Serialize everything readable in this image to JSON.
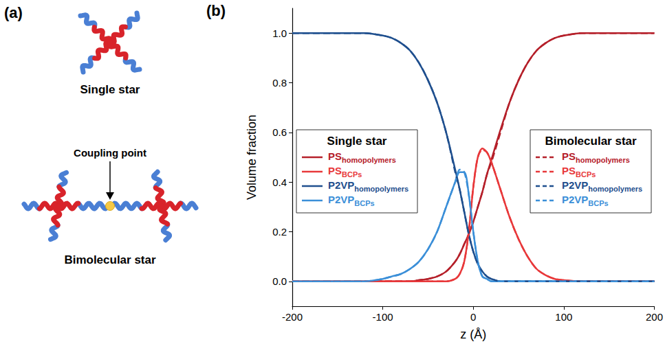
{
  "panel_a": {
    "label": "(a)",
    "single_star": {
      "caption": "Single star"
    },
    "bimolecular_star": {
      "caption": "Bimolecular star",
      "annotation": "Coupling point"
    }
  },
  "chart_data": {
    "type": "line",
    "panel_label": "(b)",
    "x_label": "z (Å)",
    "y_label": "Volume fraction",
    "xlim": [
      -200,
      200
    ],
    "xticks": [
      -200,
      -100,
      0,
      100,
      200
    ],
    "ylim": [
      -0.1,
      1.1
    ],
    "yticks": [
      {
        "value": 0,
        "label": "0.0"
      },
      0.2,
      0.4,
      0.6,
      0.8,
      {
        "value": 1,
        "label": "1.0"
      }
    ],
    "grid": false,
    "legend": "middle",
    "x": [
      -200,
      -150,
      -120,
      -100,
      -90,
      -80,
      -70,
      -60,
      -50,
      -40,
      -30,
      -20,
      -15,
      -10,
      -5,
      0,
      5,
      10,
      15,
      20,
      30,
      40,
      50,
      60,
      70,
      80,
      90,
      100,
      120,
      150,
      200
    ],
    "series": [
      {
        "group": "Single star",
        "name": "PShomopolymers",
        "subscript": "homopolymers",
        "color": "#b5202a",
        "line_style": "solid",
        "values": [
          0,
          0,
          0,
          0,
          0,
          0,
          0,
          0.005,
          0.01,
          0.02,
          0.04,
          0.08,
          0.11,
          0.15,
          0.19,
          0.24,
          0.3,
          0.36,
          0.43,
          0.49,
          0.61,
          0.72,
          0.81,
          0.88,
          0.93,
          0.96,
          0.98,
          0.99,
          1,
          1,
          1
        ]
      },
      {
        "group": "Single star",
        "name": "PSBCPs",
        "subscript": "BCPs",
        "color": "#e8383a",
        "line_style": "solid",
        "values": [
          0,
          0,
          0,
          0,
          0,
          0,
          0,
          0,
          0,
          0,
          0,
          0.01,
          0.03,
          0.08,
          0.2,
          0.38,
          0.5,
          0.535,
          0.52,
          0.48,
          0.37,
          0.26,
          0.17,
          0.1,
          0.05,
          0.025,
          0.01,
          0.005,
          0,
          0,
          0
        ]
      },
      {
        "group": "Single star",
        "name": "P2VPhomopolymers",
        "subscript": "homopolymers",
        "color": "#1f4f8e",
        "line_style": "solid",
        "values": [
          1,
          1,
          1,
          0.99,
          0.98,
          0.96,
          0.93,
          0.88,
          0.81,
          0.72,
          0.6,
          0.45,
          0.37,
          0.28,
          0.19,
          0.12,
          0.07,
          0.04,
          0.02,
          0.01,
          0,
          0,
          0,
          0,
          0,
          0,
          0,
          0,
          0,
          0,
          0
        ]
      },
      {
        "group": "Single star",
        "name": "P2VPBCPs",
        "subscript": "BCPs",
        "color": "#3b8fd8",
        "line_style": "solid",
        "values": [
          0,
          0,
          0,
          0.01,
          0.02,
          0.03,
          0.05,
          0.08,
          0.13,
          0.2,
          0.3,
          0.4,
          0.44,
          0.44,
          0.35,
          0.2,
          0.08,
          0.02,
          0.01,
          0,
          0,
          0,
          0,
          0,
          0,
          0,
          0,
          0,
          0,
          0,
          0
        ]
      },
      {
        "group": "Bimolecular star",
        "name": "PShomopolymers",
        "subscript": "homopolymers",
        "color": "#b5202a",
        "line_style": "dashed",
        "values": [
          0,
          0,
          0,
          0,
          0,
          0,
          0,
          0.005,
          0.01,
          0.02,
          0.04,
          0.08,
          0.11,
          0.15,
          0.19,
          0.24,
          0.3,
          0.36,
          0.43,
          0.48,
          0.6,
          0.72,
          0.81,
          0.88,
          0.93,
          0.96,
          0.98,
          0.99,
          1,
          1,
          1
        ]
      },
      {
        "group": "Bimolecular star",
        "name": "PSBCPs",
        "subscript": "BCPs",
        "color": "#e8383a",
        "line_style": "dashed",
        "values": [
          0,
          0,
          0,
          0,
          0,
          0,
          0,
          0,
          0,
          0,
          0,
          0.01,
          0.03,
          0.08,
          0.2,
          0.38,
          0.5,
          0.53,
          0.52,
          0.48,
          0.37,
          0.26,
          0.17,
          0.1,
          0.05,
          0.025,
          0.01,
          0.005,
          0,
          0,
          0
        ]
      },
      {
        "group": "Bimolecular star",
        "name": "P2VPhomopolymers",
        "subscript": "homopolymers",
        "color": "#1f4f8e",
        "line_style": "dashed",
        "values": [
          1,
          1,
          1,
          0.99,
          0.98,
          0.96,
          0.93,
          0.88,
          0.81,
          0.72,
          0.6,
          0.44,
          0.37,
          0.28,
          0.19,
          0.12,
          0.07,
          0.04,
          0.02,
          0.01,
          0,
          0,
          0,
          0,
          0,
          0,
          0,
          0,
          0,
          0,
          0
        ]
      },
      {
        "group": "Bimolecular star",
        "name": "P2VPBCPs",
        "subscript": "BCPs",
        "color": "#3b8fd8",
        "line_style": "dashed",
        "values": [
          0,
          0,
          0,
          0.01,
          0.02,
          0.03,
          0.05,
          0.08,
          0.13,
          0.2,
          0.3,
          0.4,
          0.45,
          0.44,
          0.35,
          0.2,
          0.08,
          0.02,
          0.01,
          0,
          0,
          0,
          0,
          0,
          0,
          0,
          0,
          0,
          0,
          0,
          0
        ]
      }
    ]
  }
}
